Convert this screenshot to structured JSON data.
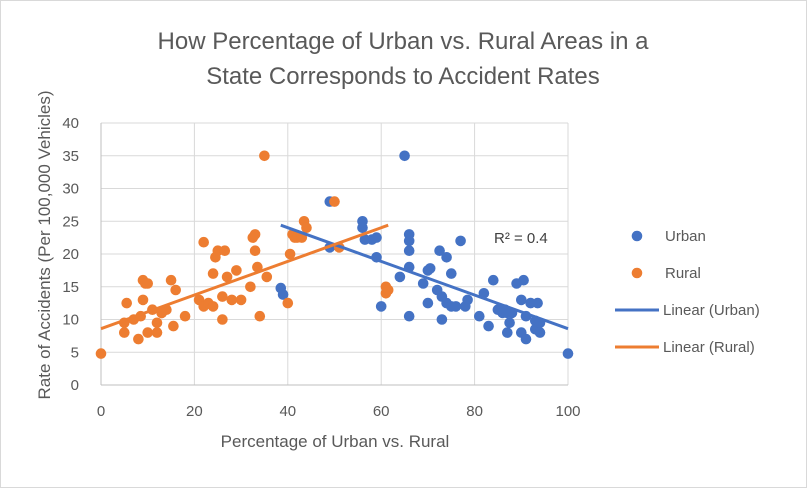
{
  "chart_data": {
    "type": "scatter",
    "title_lines": [
      "How Percentage of Urban vs. Rural Areas in a",
      "State Corresponds to Accident Rates"
    ],
    "xlabel": "Percentage of Urban vs. Rural",
    "ylabel": "Rate of Accidents (Per 100,000 Vehicles)",
    "xlim": [
      0,
      100
    ],
    "ylim": [
      0,
      40
    ],
    "xticks": [
      0,
      20,
      40,
      60,
      80,
      100
    ],
    "yticks": [
      0,
      5,
      10,
      15,
      20,
      25,
      30,
      35,
      40
    ],
    "grid": true,
    "legend_position": "right",
    "annotation": "R² = 0.4",
    "series": [
      {
        "name": "Urban",
        "color": "#4472C4",
        "points": [
          [
            38.5,
            14.8
          ],
          [
            39,
            13.8
          ],
          [
            49,
            28
          ],
          [
            49,
            21
          ],
          [
            56,
            25
          ],
          [
            56,
            24
          ],
          [
            56.5,
            22.2
          ],
          [
            58,
            22.2
          ],
          [
            59,
            22.5
          ],
          [
            59,
            19.5
          ],
          [
            60,
            12
          ],
          [
            64,
            16.5
          ],
          [
            65,
            35
          ],
          [
            66,
            23
          ],
          [
            66,
            22
          ],
          [
            66,
            20.5
          ],
          [
            66,
            18
          ],
          [
            66,
            10.5
          ],
          [
            69,
            15.5
          ],
          [
            70,
            12.5
          ],
          [
            70,
            17.5
          ],
          [
            70.5,
            17.8
          ],
          [
            72,
            14.5
          ],
          [
            72.5,
            20.5
          ],
          [
            73,
            13.5
          ],
          [
            73,
            10
          ],
          [
            74,
            19.5
          ],
          [
            74,
            12.5
          ],
          [
            75,
            17
          ],
          [
            75,
            12
          ],
          [
            76,
            12
          ],
          [
            77,
            22
          ],
          [
            78,
            12
          ],
          [
            78.5,
            13
          ],
          [
            81,
            10.5
          ],
          [
            82,
            14
          ],
          [
            83,
            9
          ],
          [
            84,
            16
          ],
          [
            85,
            11.5
          ],
          [
            86,
            11
          ],
          [
            86.5,
            11.5
          ],
          [
            87,
            11
          ],
          [
            87,
            8
          ],
          [
            87.5,
            9.5
          ],
          [
            88,
            11
          ],
          [
            89,
            15.5
          ],
          [
            90,
            13
          ],
          [
            90,
            8
          ],
          [
            90.5,
            16
          ],
          [
            91,
            10.5
          ],
          [
            91,
            7
          ],
          [
            92,
            12.5
          ],
          [
            93,
            9.8
          ],
          [
            93,
            8.5
          ],
          [
            93.5,
            12.5
          ],
          [
            94,
            9.5
          ],
          [
            94,
            8
          ],
          [
            100,
            4.8
          ]
        ]
      },
      {
        "name": "Rural",
        "color": "#ED7D31",
        "points": [
          [
            0,
            4.8
          ],
          [
            5,
            9.5
          ],
          [
            5,
            8
          ],
          [
            5.5,
            12.5
          ],
          [
            7,
            10
          ],
          [
            8,
            7
          ],
          [
            8.5,
            10.5
          ],
          [
            9,
            16
          ],
          [
            9,
            13
          ],
          [
            9.5,
            15.5
          ],
          [
            10,
            8
          ],
          [
            10,
            15.5
          ],
          [
            11,
            11.5
          ],
          [
            12,
            9.5
          ],
          [
            12,
            8
          ],
          [
            13,
            11
          ],
          [
            13,
            11
          ],
          [
            14,
            11.5
          ],
          [
            15,
            16
          ],
          [
            15.5,
            9
          ],
          [
            16,
            14.5
          ],
          [
            18,
            10.5
          ],
          [
            21,
            13
          ],
          [
            22,
            12
          ],
          [
            22,
            21.8
          ],
          [
            23,
            12.5
          ],
          [
            24,
            12
          ],
          [
            24,
            17
          ],
          [
            24.5,
            19.5
          ],
          [
            25,
            20.5
          ],
          [
            26,
            13.5
          ],
          [
            26,
            10
          ],
          [
            26.5,
            20.5
          ],
          [
            27,
            16.5
          ],
          [
            28,
            13
          ],
          [
            29,
            17.5
          ],
          [
            30,
            13
          ],
          [
            32,
            15
          ],
          [
            32.5,
            22.5
          ],
          [
            33,
            23
          ],
          [
            33,
            20.5
          ],
          [
            33.5,
            18
          ],
          [
            34,
            10.5
          ],
          [
            35,
            35
          ],
          [
            35.5,
            16.5
          ],
          [
            40,
            12.5
          ],
          [
            40.5,
            20
          ],
          [
            41,
            23
          ],
          [
            41.5,
            22.5
          ],
          [
            42,
            22.5
          ],
          [
            43,
            22.5
          ],
          [
            43.5,
            25
          ],
          [
            44,
            24
          ],
          [
            50,
            28
          ],
          [
            51,
            21
          ],
          [
            61,
            14
          ],
          [
            61,
            15
          ],
          [
            61.5,
            14.5
          ]
        ]
      }
    ],
    "trendlines": [
      {
        "name": "Linear (Urban)",
        "color": "#4472C4",
        "x": [
          38.5,
          100
        ],
        "y": [
          24.4,
          8.6
        ]
      },
      {
        "name": "Linear (Rural)",
        "color": "#ED7D31",
        "x": [
          0,
          61.5
        ],
        "y": [
          8.6,
          24.4
        ]
      }
    ]
  }
}
